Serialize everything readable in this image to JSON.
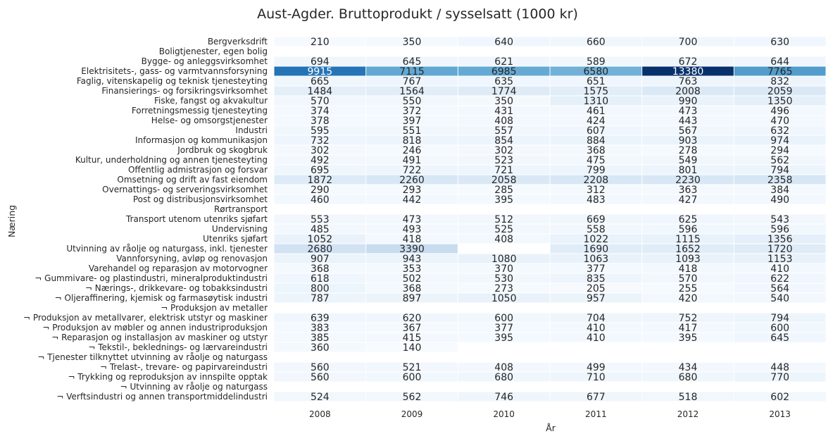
{
  "chart_data": {
    "type": "heatmap",
    "title": "Aust-Agder. Bruttoprodukt / sysselsatt (1000 kr)",
    "xlabel": "År",
    "ylabel": "Næring",
    "x": [
      "2008",
      "2009",
      "2010",
      "2011",
      "2012",
      "2013"
    ],
    "y": [
      "Bergverksdrift",
      "Boligtjenester, egen bolig",
      "Bygge- og anleggsvirksomhet",
      "Elektrisitets-, gass- og varmtvannsforsyning",
      "Faglig, vitenskapelig og teknisk tjenesteyting",
      "Finansierings- og forsikringsvirksomhet",
      "Fiske, fangst og akvakultur",
      "Forretningsmessig tjenesteyting",
      "Helse- og omsorgstjenester",
      "Industri",
      "Informasjon og kommunikasjon",
      "Jordbruk og skogbruk",
      "Kultur, underholdning og annen tjenesteyting",
      "Offentlig admistrasjon og forsvar",
      "Omsetning og drift av fast eiendom",
      "Overnattings- og serveringsvirksomhet",
      "Post og distribusjonsvirksomhet",
      "Rørtransport",
      "Transport utenom utenriks sjøfart",
      "Undervisning",
      "Utenriks sjøfart",
      "Utvinning av råolje og naturgass, inkl. tjenester",
      "Vannforsyning, avløp og renovasjon",
      "Varehandel og reparasjon av motorvogner",
      "¬ Gummivare- og plastindustri, mineralproduktindustri",
      "¬ Nærings-, drikkevare- og tobakksindustri",
      "¬ Oljeraffinering, kjemisk og farmasøytisk industri",
      "¬ Produksjon av metaller",
      "¬ Produksjon av metallvarer, elektrisk utstyr og maskiner",
      "¬ Produksjon av møbler og annen industriproduksjon",
      "¬ Reparasjon og installasjon av maskiner og utstyr",
      "¬ Tekstil-, beklednings- og lærvareindustri",
      "¬ Tjenester tilknyttet utvinning av råolje og naturgass",
      "¬ Trelast-, trevare- og papirvareindustri",
      "¬ Trykking og reproduksjon av innspilte opptak",
      "¬ Utvinning av råolje og naturgass",
      "¬ Verftsindustri og annen transportmiddelindustri"
    ],
    "values": [
      [
        210,
        350,
        640,
        660,
        700,
        630
      ],
      [
        null,
        null,
        null,
        null,
        null,
        null
      ],
      [
        694,
        645,
        621,
        589,
        672,
        644
      ],
      [
        9915,
        7115,
        6985,
        6580,
        13380,
        7765
      ],
      [
        665,
        767,
        635,
        651,
        763,
        832
      ],
      [
        1484,
        1564,
        1774,
        1575,
        2008,
        2059
      ],
      [
        570,
        550,
        350,
        1310,
        990,
        1350
      ],
      [
        374,
        372,
        431,
        461,
        473,
        496
      ],
      [
        378,
        397,
        408,
        424,
        443,
        470
      ],
      [
        595,
        551,
        557,
        607,
        567,
        632
      ],
      [
        732,
        818,
        854,
        884,
        903,
        974
      ],
      [
        302,
        246,
        302,
        368,
        278,
        294
      ],
      [
        492,
        491,
        523,
        475,
        549,
        562
      ],
      [
        695,
        722,
        721,
        799,
        801,
        794
      ],
      [
        1872,
        2260,
        2058,
        2208,
        2230,
        2358
      ],
      [
        290,
        293,
        285,
        312,
        363,
        384
      ],
      [
        460,
        442,
        395,
        483,
        427,
        490
      ],
      [
        null,
        null,
        null,
        null,
        null,
        null
      ],
      [
        553,
        473,
        512,
        669,
        625,
        543
      ],
      [
        485,
        493,
        525,
        558,
        596,
        596
      ],
      [
        1052,
        418,
        408,
        1022,
        1115,
        1356
      ],
      [
        2680,
        3390,
        null,
        1690,
        1652,
        1720
      ],
      [
        907,
        943,
        1080,
        1063,
        1093,
        1153
      ],
      [
        368,
        353,
        370,
        377,
        418,
        410
      ],
      [
        618,
        502,
        530,
        835,
        570,
        622
      ],
      [
        800,
        368,
        273,
        205,
        255,
        564
      ],
      [
        787,
        897,
        1050,
        957,
        420,
        540
      ],
      [
        null,
        null,
        null,
        null,
        null,
        null
      ],
      [
        639,
        620,
        600,
        704,
        752,
        794
      ],
      [
        383,
        367,
        377,
        410,
        417,
        600
      ],
      [
        385,
        415,
        395,
        410,
        395,
        645
      ],
      [
        360,
        140,
        null,
        null,
        null,
        null
      ],
      [
        null,
        null,
        null,
        null,
        null,
        null
      ],
      [
        560,
        521,
        408,
        499,
        434,
        448
      ],
      [
        560,
        600,
        680,
        710,
        680,
        770
      ],
      [
        null,
        null,
        null,
        null,
        null,
        null
      ],
      [
        524,
        562,
        746,
        677,
        518,
        602
      ]
    ],
    "colormap": "Blues",
    "vmin": 140,
    "vmax": 13380
  }
}
